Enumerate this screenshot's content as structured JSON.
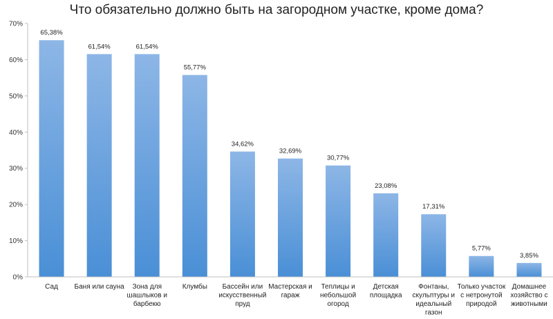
{
  "chart_data": {
    "type": "bar",
    "title": "Что обязательно должно быть на загородном участке, кроме дома?",
    "categories": [
      "Сад",
      "Баня или сауна",
      "Зона для шашлыков и барбекю",
      "Клумбы",
      "Бассейн или искусственный пруд",
      "Мастерская и гараж",
      "Теплицы и небольшой огород",
      "Детская площадка",
      "Фонтаны, скульптуры и идеальный газон",
      "Только участок с нетронутой природой",
      "Домашнее хозяйство с животными"
    ],
    "category_lines": [
      [
        "Сад"
      ],
      [
        "Баня или сауна"
      ],
      [
        "Зона для",
        "шашлыков и",
        "барбекю"
      ],
      [
        "Клумбы"
      ],
      [
        "Бассейн или",
        "искусственный",
        "пруд"
      ],
      [
        "Мастерская и",
        "гараж"
      ],
      [
        "Теплицы и",
        "небольшой",
        "огород"
      ],
      [
        "Детская",
        "площадка"
      ],
      [
        "Фонтаны,",
        "скульптуры и",
        "идеальный",
        "газон"
      ],
      [
        "Только участок",
        "с нетронутой",
        "природой"
      ],
      [
        "Домашнее",
        "хозяйство с",
        "животными"
      ]
    ],
    "values": [
      65.38,
      61.54,
      61.54,
      55.77,
      34.62,
      32.69,
      30.77,
      23.08,
      17.31,
      5.77,
      3.85
    ],
    "value_labels": [
      "65,38%",
      "61,54%",
      "61,54%",
      "55,77%",
      "34,62%",
      "32,69%",
      "30,77%",
      "23,08%",
      "17,31%",
      "5,77%",
      "3,85%"
    ],
    "ylim": [
      0,
      70
    ],
    "yticks": [
      0,
      10,
      20,
      30,
      40,
      50,
      60,
      70
    ],
    "ytick_labels": [
      "0%",
      "10%",
      "20%",
      "30%",
      "40%",
      "50%",
      "60%",
      "70%"
    ],
    "xlabel": "",
    "ylabel": "",
    "grid": false,
    "legend": "none",
    "colors": {
      "bar_light": "#8db6e6",
      "bar_dark": "#4a8fd6",
      "axis": "#bfbfbf"
    }
  }
}
